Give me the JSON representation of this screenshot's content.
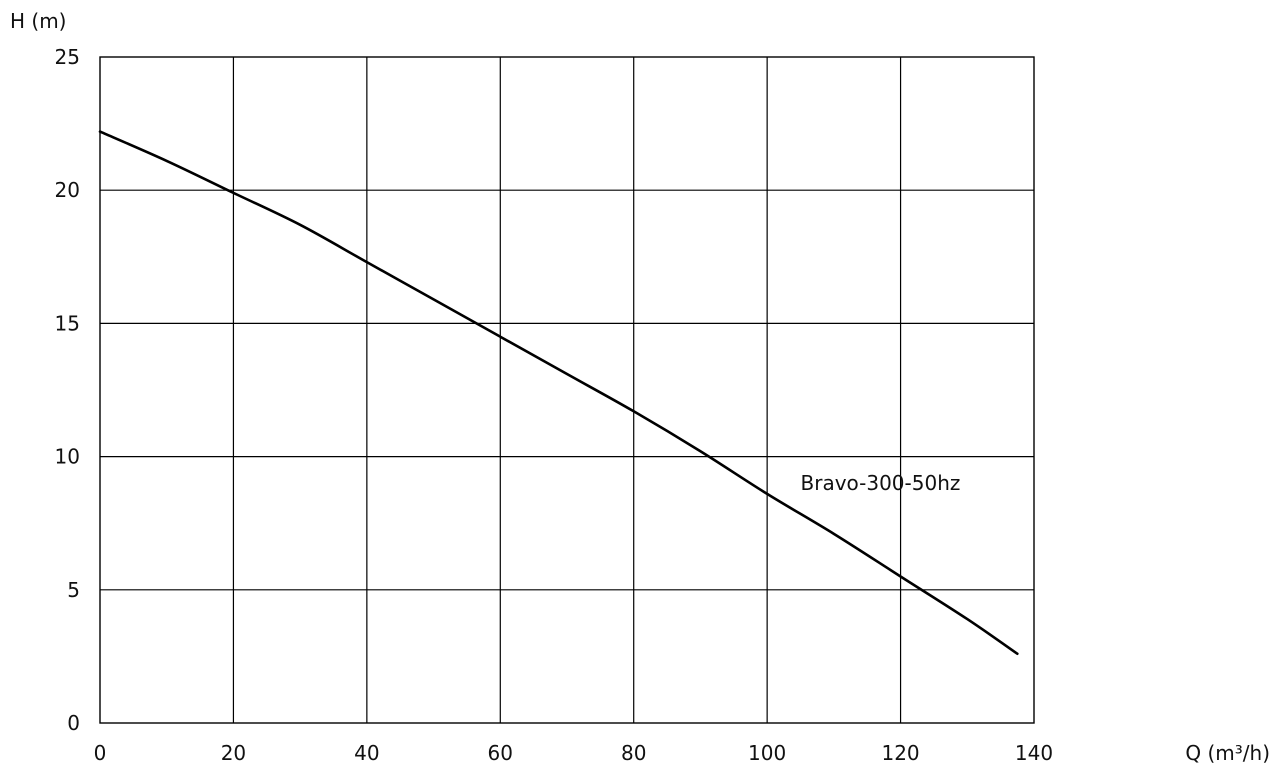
{
  "chart_data": {
    "type": "line",
    "title": "",
    "xlabel": "Q (m³/h)",
    "ylabel": "H (m)",
    "xlim": [
      0,
      140
    ],
    "ylim": [
      0,
      25
    ],
    "x_ticks": [
      0,
      20,
      40,
      60,
      80,
      100,
      120,
      140
    ],
    "y_ticks": [
      0,
      5,
      10,
      15,
      20,
      25
    ],
    "grid": true,
    "series": [
      {
        "x": [
          0,
          10,
          20,
          30,
          40,
          50,
          60,
          70,
          80,
          90,
          100,
          110,
          120,
          130,
          137.5
        ],
        "y": [
          22.2,
          21.1,
          19.9,
          18.7,
          17.3,
          15.9,
          14.5,
          13.1,
          11.7,
          10.2,
          8.6,
          7.1,
          5.5,
          3.9,
          2.6
        ]
      }
    ],
    "annotations": [
      {
        "text": "Bravo-300-50hz",
        "x": 105,
        "y": 9
      }
    ]
  }
}
